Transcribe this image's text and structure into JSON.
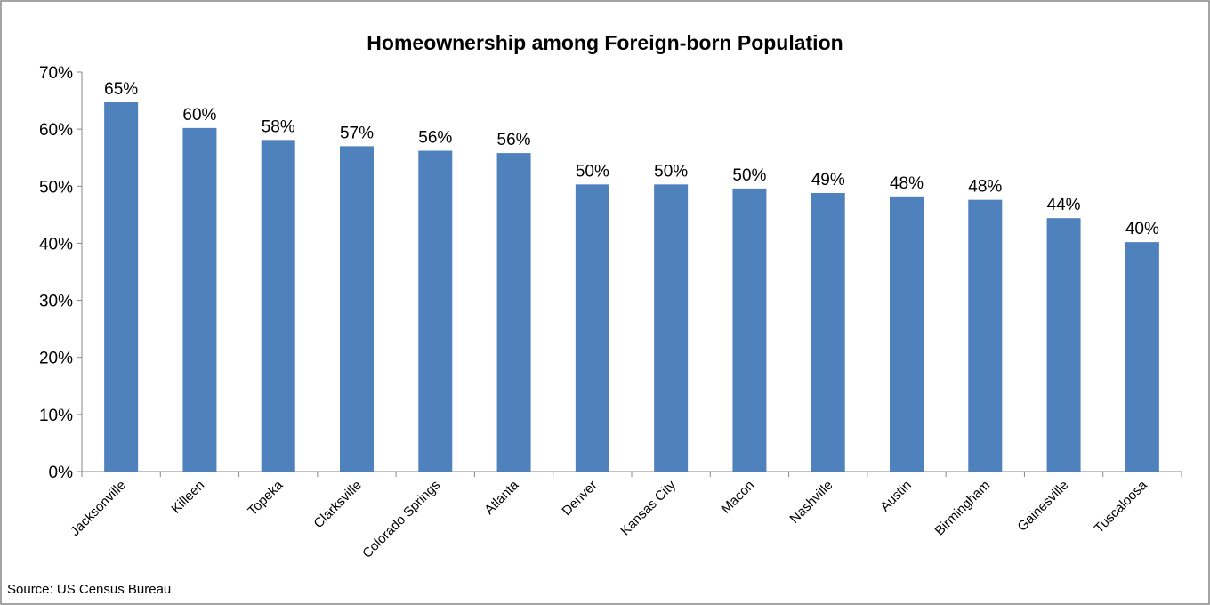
{
  "chart_data": {
    "type": "bar",
    "title": "Homeownership among Foreign-born Population",
    "source": "Source: US Census Bureau",
    "categories": [
      "Jacksonville",
      "Killeen",
      "Topeka",
      "Clarksville",
      "Colorado Springs",
      "Atlanta",
      "Denver",
      "Kansas City",
      "Macon",
      "Nashville",
      "Austin",
      "Birmingham",
      "Gainesville",
      "Tuscaloosa"
    ],
    "values": [
      64.7,
      60.2,
      58.1,
      57.0,
      56.2,
      55.8,
      50.3,
      50.3,
      49.6,
      48.8,
      48.2,
      47.6,
      44.4,
      40.2
    ],
    "value_labels": [
      "65%",
      "60%",
      "58%",
      "57%",
      "56%",
      "56%",
      "50%",
      "50%",
      "50%",
      "49%",
      "48%",
      "48%",
      "44%",
      "40%"
    ],
    "color": "#4f81bd",
    "ylim": [
      0,
      70
    ],
    "yticks": [
      {
        "value": 0,
        "label": "0%"
      },
      {
        "value": 10,
        "label": "10%"
      },
      {
        "value": 20,
        "label": "20%"
      },
      {
        "value": 30,
        "label": "30%"
      },
      {
        "value": 40,
        "label": "40%"
      },
      {
        "value": 50,
        "label": "50%"
      },
      {
        "value": 60,
        "label": "60%"
      },
      {
        "value": 70,
        "label": "70%"
      }
    ],
    "grid": false
  }
}
